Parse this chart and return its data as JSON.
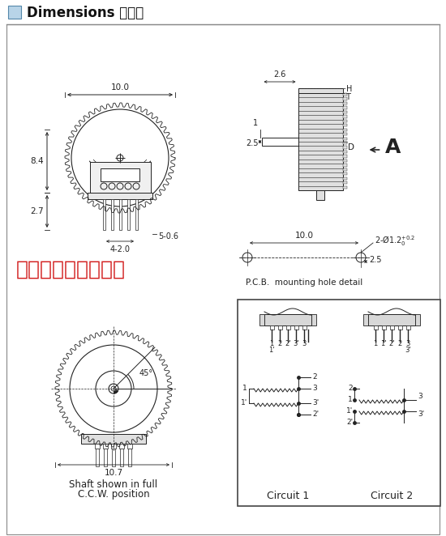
{
  "title": "Dimensions 尺寸图",
  "title_box_color": "#b8d4e8",
  "bg_color": "#ffffff",
  "outer_bg": "#f0f0f0",
  "border_color": "#666666",
  "line_color": "#222222",
  "red_text": "广州市永兴科技电子",
  "red_color": "#cc0000",
  "dim_top_width": "10.0",
  "dim_left_height": "8.4",
  "dim_lower": "2.7",
  "dim_pins": "4-2.0",
  "dim_pin_dia": "5-0.6",
  "side_26": "2.6",
  "side_H": "H",
  "side_T": "T",
  "side_1": "1",
  "side_25": "2.5",
  "side_D": "D",
  "side_A": "A",
  "pcb_100": "10.0",
  "pcb_hole": "2-Ø1.2",
  "pcb_tol": "+0.2\n 0",
  "pcb_25": "2.5",
  "pcb_label": "P.C.B.  mounting hole detail",
  "bot_107": "10.7",
  "bot_45": "45°",
  "shaft_text1": "Shaft shown in full",
  "shaft_text2": "C.C.W. position",
  "circ1_label": "Circuit 1",
  "circ2_label": "Circuit 2",
  "c1_pins": [
    "1",
    "2",
    "2'",
    "3'",
    "3"
  ],
  "c1_pin_bot": "1'",
  "c2_pins": [
    "1",
    "1'",
    "2'",
    "2",
    "3"
  ],
  "c2_pin_bot": "3'"
}
